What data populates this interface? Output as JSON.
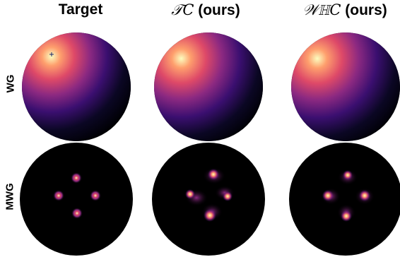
{
  "columns": [
    {
      "title": "Target"
    },
    {
      "title_script": "𝒯C",
      "title_suffix": " (ours)"
    },
    {
      "title_script": "𝒲ℍC",
      "title_suffix": " (ours)"
    }
  ],
  "rows": [
    {
      "label": "WG"
    },
    {
      "label": "MWG"
    }
  ],
  "colors": {
    "background": "#000000",
    "colormap": [
      "#000004",
      "#3b0f70",
      "#8c2981",
      "#de4968",
      "#fe9f6d",
      "#fcfdbf"
    ]
  }
}
